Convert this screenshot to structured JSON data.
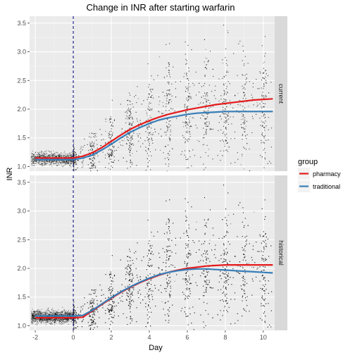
{
  "chart_data": {
    "type": "scatter",
    "title": "Change in INR after starting warfarin",
    "xlabel": "Day",
    "ylabel": "INR",
    "xlim": [
      -2.3,
      10.6
    ],
    "ylim": [
      0.92,
      3.62
    ],
    "x_ticks": [
      -2,
      0,
      2,
      4,
      6,
      8,
      10
    ],
    "x_tick_labels": [
      "-2",
      "0",
      "2",
      "4",
      "6",
      "8",
      "10"
    ],
    "y_ticks": [
      1.0,
      1.5,
      2.0,
      2.5,
      3.0,
      3.5
    ],
    "y_tick_labels": [
      "1.0",
      "1.5",
      "2.0",
      "2.5",
      "3.0",
      "3.5"
    ],
    "vline_x": 0,
    "grid": true,
    "legend": {
      "title": "group",
      "position": "right",
      "entries": [
        {
          "label": "pharmacy",
          "color": "#e41a1c"
        },
        {
          "label": "traditional",
          "color": "#377eb8"
        }
      ]
    },
    "point_color": "#000000",
    "panels": [
      {
        "strip": "current",
        "series": [
          {
            "name": "pharmacy",
            "color": "#e41a1c",
            "x": [
              -2,
              -1,
              0,
              0.5,
              1,
              1.5,
              2,
              2.5,
              3,
              3.5,
              4,
              4.5,
              5,
              5.5,
              6,
              6.5,
              7,
              7.5,
              8,
              8.5,
              9,
              9.5,
              10,
              10.5
            ],
            "y": [
              1.15,
              1.15,
              1.15,
              1.18,
              1.24,
              1.33,
              1.44,
              1.55,
              1.65,
              1.73,
              1.8,
              1.86,
              1.91,
              1.95,
              1.99,
              2.02,
              2.05,
              2.08,
              2.1,
              2.12,
              2.14,
              2.16,
              2.17,
              2.18
            ]
          },
          {
            "name": "traditional",
            "color": "#377eb8",
            "x": [
              -2,
              -1,
              0,
              0.5,
              1,
              1.5,
              2,
              2.5,
              3,
              3.5,
              4,
              4.5,
              5,
              5.5,
              6,
              6.5,
              7,
              7.5,
              8,
              8.5,
              9,
              9.5,
              10,
              10.5
            ],
            "y": [
              1.12,
              1.12,
              1.12,
              1.15,
              1.2,
              1.29,
              1.39,
              1.5,
              1.6,
              1.68,
              1.75,
              1.81,
              1.85,
              1.88,
              1.91,
              1.93,
              1.94,
              1.95,
              1.96,
              1.96,
              1.96,
              1.96,
              1.96,
              1.96
            ]
          }
        ]
      },
      {
        "strip": "historical",
        "series": [
          {
            "name": "pharmacy",
            "color": "#e41a1c",
            "x": [
              -2,
              -1,
              0,
              0.5,
              1,
              1.5,
              2,
              2.5,
              3,
              3.5,
              4,
              4.5,
              5,
              5.5,
              6,
              6.5,
              7,
              7.5,
              8,
              8.5,
              9,
              9.5,
              10,
              10.5
            ],
            "y": [
              1.14,
              1.14,
              1.14,
              1.15,
              1.26,
              1.37,
              1.48,
              1.58,
              1.67,
              1.75,
              1.82,
              1.88,
              1.93,
              1.97,
              2.0,
              2.02,
              2.04,
              2.05,
              2.06,
              2.06,
              2.06,
              2.06,
              2.06,
              2.06
            ]
          },
          {
            "name": "traditional",
            "color": "#377eb8",
            "x": [
              -2,
              -1,
              0,
              0.5,
              1,
              1.5,
              2,
              2.5,
              3,
              3.5,
              4,
              4.5,
              5,
              5.5,
              6,
              6.5,
              7,
              7.5,
              8,
              8.5,
              9,
              9.5,
              10,
              10.5
            ],
            "y": [
              1.17,
              1.17,
              1.17,
              1.18,
              1.27,
              1.38,
              1.49,
              1.59,
              1.68,
              1.76,
              1.83,
              1.89,
              1.93,
              1.96,
              1.98,
              1.99,
              1.99,
              1.98,
              1.97,
              1.96,
              1.95,
              1.94,
              1.93,
              1.92
            ]
          }
        ]
      }
    ]
  }
}
